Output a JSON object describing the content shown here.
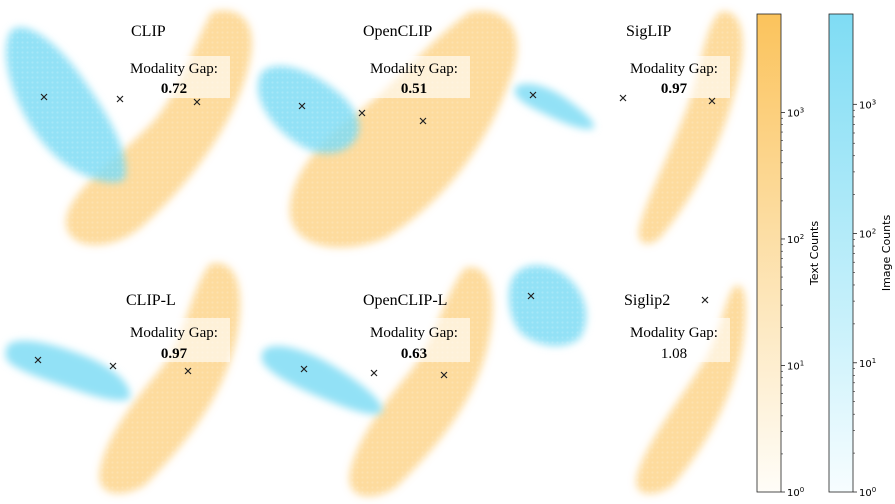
{
  "chart_data": {
    "type": "hexbin-density-panels",
    "description_axes": "2D embedding projections, no visible axes",
    "panels": [
      {
        "model": "CLIP",
        "gap_label": "Modality Gap:",
        "gap_value": "0.72"
      },
      {
        "model": "OpenCLIP",
        "gap_label": "Modality Gap:",
        "gap_value": "0.51"
      },
      {
        "model": "SigLIP",
        "gap_label": "Modality Gap:",
        "gap_value": "0.97"
      },
      {
        "model": "CLIP-L",
        "gap_label": "Modality Gap:",
        "gap_value": "0.97"
      },
      {
        "model": "OpenCLIP-L",
        "gap_label": "Modality Gap:",
        "gap_value": "0.63"
      },
      {
        "model": "Siglip2",
        "gap_label": "Modality Gap:",
        "gap_value": "1.08"
      }
    ],
    "colorbars": [
      {
        "label": "Text Counts",
        "scale": "log",
        "range": [
          1,
          6000
        ],
        "ticks": [
          {
            "value": 1,
            "base": "10",
            "exp": "0"
          },
          {
            "value": 10,
            "base": "10",
            "exp": "1"
          },
          {
            "value": 100,
            "base": "10",
            "exp": "2"
          },
          {
            "value": 1000,
            "base": "10",
            "exp": "3"
          }
        ],
        "color_low": "#fffdf8",
        "color_high": "#fbc35c"
      },
      {
        "label": "Image Counts",
        "scale": "log",
        "range": [
          1,
          5000
        ],
        "ticks": [
          {
            "value": 1,
            "base": "10",
            "exp": "0"
          },
          {
            "value": 10,
            "base": "10",
            "exp": "1"
          },
          {
            "value": 100,
            "base": "10",
            "exp": "2"
          },
          {
            "value": 1000,
            "base": "10",
            "exp": "3"
          }
        ],
        "color_low": "#f7fdff",
        "color_high": "#7fdcf4"
      }
    ],
    "colors": {
      "text_cloud": "#fbc35c",
      "image_cloud": "#7fdcf4",
      "marker": "#222222"
    }
  }
}
